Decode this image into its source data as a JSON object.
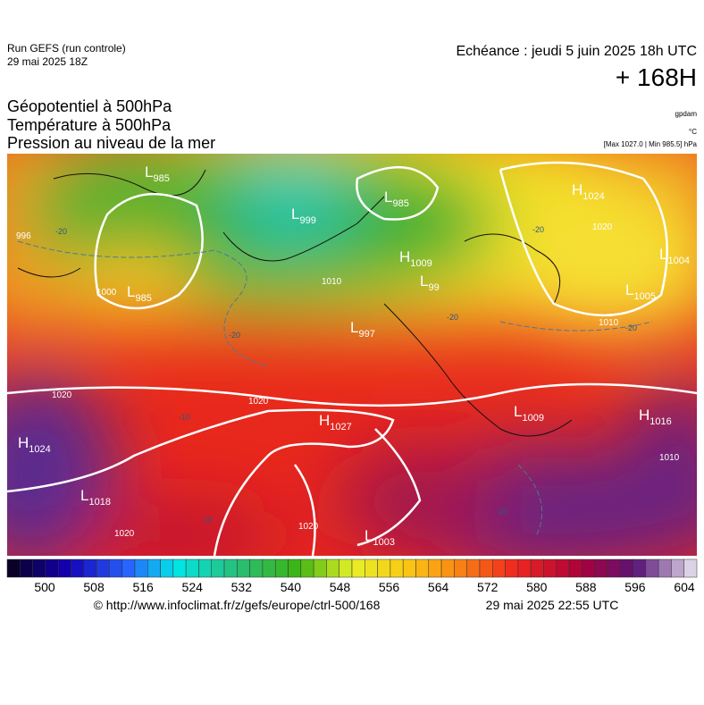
{
  "header": {
    "run": "Run GEFS (run controle)",
    "run_date": "29 mai 2025 18Z",
    "echeance": "Echéance : jeudi 5 juin 2025 18h UTC",
    "lead": "+ 168H",
    "titles": [
      "Géopotentiel à 500hPa",
      "Température à 500hPa",
      "Pression au niveau de la mer"
    ],
    "units": [
      "gpdam",
      "°C",
      "[Max 1027.0 | Min 985.5] hPa"
    ]
  },
  "map": {
    "pressure_centers": [
      {
        "kind": "L",
        "value": "985"
      },
      {
        "kind": "L",
        "value": "999"
      },
      {
        "kind": "L",
        "value": "985"
      },
      {
        "kind": "H",
        "value": "1009"
      },
      {
        "kind": "L",
        "value": "99"
      },
      {
        "kind": "L",
        "value": "985"
      },
      {
        "kind": "L",
        "value": "997"
      },
      {
        "kind": "H",
        "value": "1027"
      },
      {
        "kind": "H",
        "value": "1024"
      },
      {
        "kind": "L",
        "value": "1018"
      },
      {
        "kind": "L",
        "value": "1003"
      },
      {
        "kind": "L",
        "value": "1009"
      },
      {
        "kind": "H",
        "value": "1016"
      },
      {
        "kind": "L",
        "value": "1004"
      },
      {
        "kind": "L",
        "value": "1005"
      },
      {
        "kind": "H",
        "value": "1024"
      }
    ],
    "isobar_labels": [
      "1020",
      "1020",
      "1020",
      "1020",
      "1020",
      "1010",
      "996",
      "1000",
      "1010",
      "1010"
    ],
    "temperature_labels": [
      "-20",
      "-20",
      "-20",
      "-10",
      "-10",
      "-10",
      "-20",
      "-20"
    ]
  },
  "colorbar": {
    "ticks": [
      500,
      508,
      516,
      524,
      532,
      540,
      548,
      556,
      564,
      572,
      580,
      588,
      596,
      604
    ]
  },
  "footer": {
    "url": "© http://www.infoclimat.fr/z/gefs/europe/ctrl-500/168",
    "generated": "29 mai 2025 22:55 UTC"
  }
}
